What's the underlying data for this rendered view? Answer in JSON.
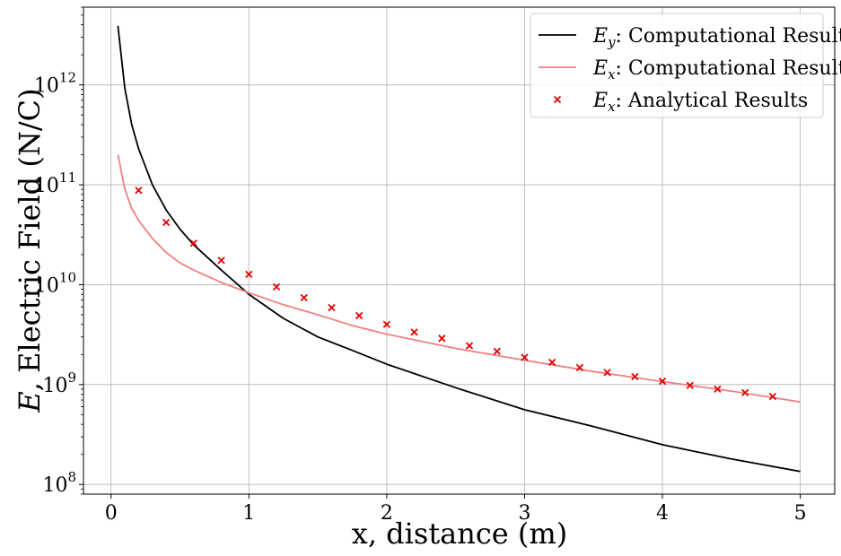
{
  "chart_data": {
    "type": "line",
    "xlabel": "x, distance (m)",
    "ylabel_italic": "E",
    "ylabel_rest": ", Electric Field (N/C)",
    "yscale": "log",
    "xlim": [
      -0.2,
      5.25
    ],
    "ylim": [
      80000000.0,
      6000000000000.0
    ],
    "grid": true,
    "legend_position": "top-right",
    "x_ticks": [
      {
        "value": 0,
        "label": "0"
      },
      {
        "value": 1,
        "label": "1"
      },
      {
        "value": 2,
        "label": "2"
      },
      {
        "value": 3,
        "label": "3"
      },
      {
        "value": 4,
        "label": "4"
      },
      {
        "value": 5,
        "label": "5"
      }
    ],
    "y_ticks": [
      {
        "value": 100000000.0,
        "base": "10",
        "exp": "8"
      },
      {
        "value": 1000000000.0,
        "base": "10",
        "exp": "9"
      },
      {
        "value": 10000000000.0,
        "base": "10",
        "exp": "10"
      },
      {
        "value": 100000000000.0,
        "base": "10",
        "exp": "11"
      },
      {
        "value": 1000000000000.0,
        "base": "10",
        "exp": "12"
      }
    ],
    "series": [
      {
        "symbol": "E",
        "subscript": "y",
        "name": ": Computational Result",
        "style": "line",
        "color": "#000000",
        "x": [
          0.05,
          0.1,
          0.15,
          0.2,
          0.3,
          0.4,
          0.5,
          0.6,
          0.8,
          1.0,
          1.25,
          1.5,
          1.75,
          2.0,
          2.5,
          3.0,
          3.5,
          4.0,
          4.5,
          5.0
        ],
        "y": [
          3900000000000.0,
          920000000000.0,
          400000000000.0,
          230000000000.0,
          100000000000.0,
          56000000000.0,
          36000000000.0,
          25000000000.0,
          14000000000.0,
          8000000000.0,
          4600000000.0,
          3000000000.0,
          2200000000.0,
          1600000000.0,
          930000000.0,
          560000000.0,
          380000000.0,
          250000000.0,
          180000000.0,
          135000000.0
        ]
      },
      {
        "symbol": "E",
        "subscript": "x",
        "name": ": Computational Result",
        "style": "line",
        "color": "#f08080",
        "x": [
          0.05,
          0.1,
          0.15,
          0.2,
          0.3,
          0.4,
          0.5,
          0.6,
          0.8,
          1.0,
          1.25,
          1.5,
          1.75,
          2.0,
          2.5,
          3.0,
          3.5,
          4.0,
          4.5,
          5.0
        ],
        "y": [
          200000000000.0,
          90000000000.0,
          58000000000.0,
          44000000000.0,
          29000000000.0,
          21000000000.0,
          16500000000.0,
          14000000000.0,
          10500000000.0,
          8300000000.0,
          6300000000.0,
          5000000000.0,
          3900000000.0,
          3200000000.0,
          2300000000.0,
          1750000000.0,
          1350000000.0,
          1070000000.0,
          860000000.0,
          670000000.0
        ]
      },
      {
        "symbol": "E",
        "subscript": "x",
        "name": ": Analytical Results",
        "style": "scatter",
        "color": "#e00000",
        "x": [
          0.2,
          0.4,
          0.6,
          0.8,
          1.0,
          1.2,
          1.4,
          1.6,
          1.8,
          2.0,
          2.2,
          2.4,
          2.6,
          2.8,
          3.0,
          3.2,
          3.4,
          3.6,
          3.8,
          4.0,
          4.2,
          4.4,
          4.6,
          4.8
        ],
        "y": [
          88000000000.0,
          42000000000.0,
          26000000000.0,
          17500000000.0,
          12700000000.0,
          9500000000.0,
          7400000000.0,
          5900000000.0,
          4900000000.0,
          4000000000.0,
          3350000000.0,
          2900000000.0,
          2450000000.0,
          2150000000.0,
          1870000000.0,
          1670000000.0,
          1480000000.0,
          1320000000.0,
          1200000000.0,
          1080000000.0,
          980000000.0,
          900000000.0,
          830000000.0,
          760000000.0
        ]
      }
    ]
  }
}
